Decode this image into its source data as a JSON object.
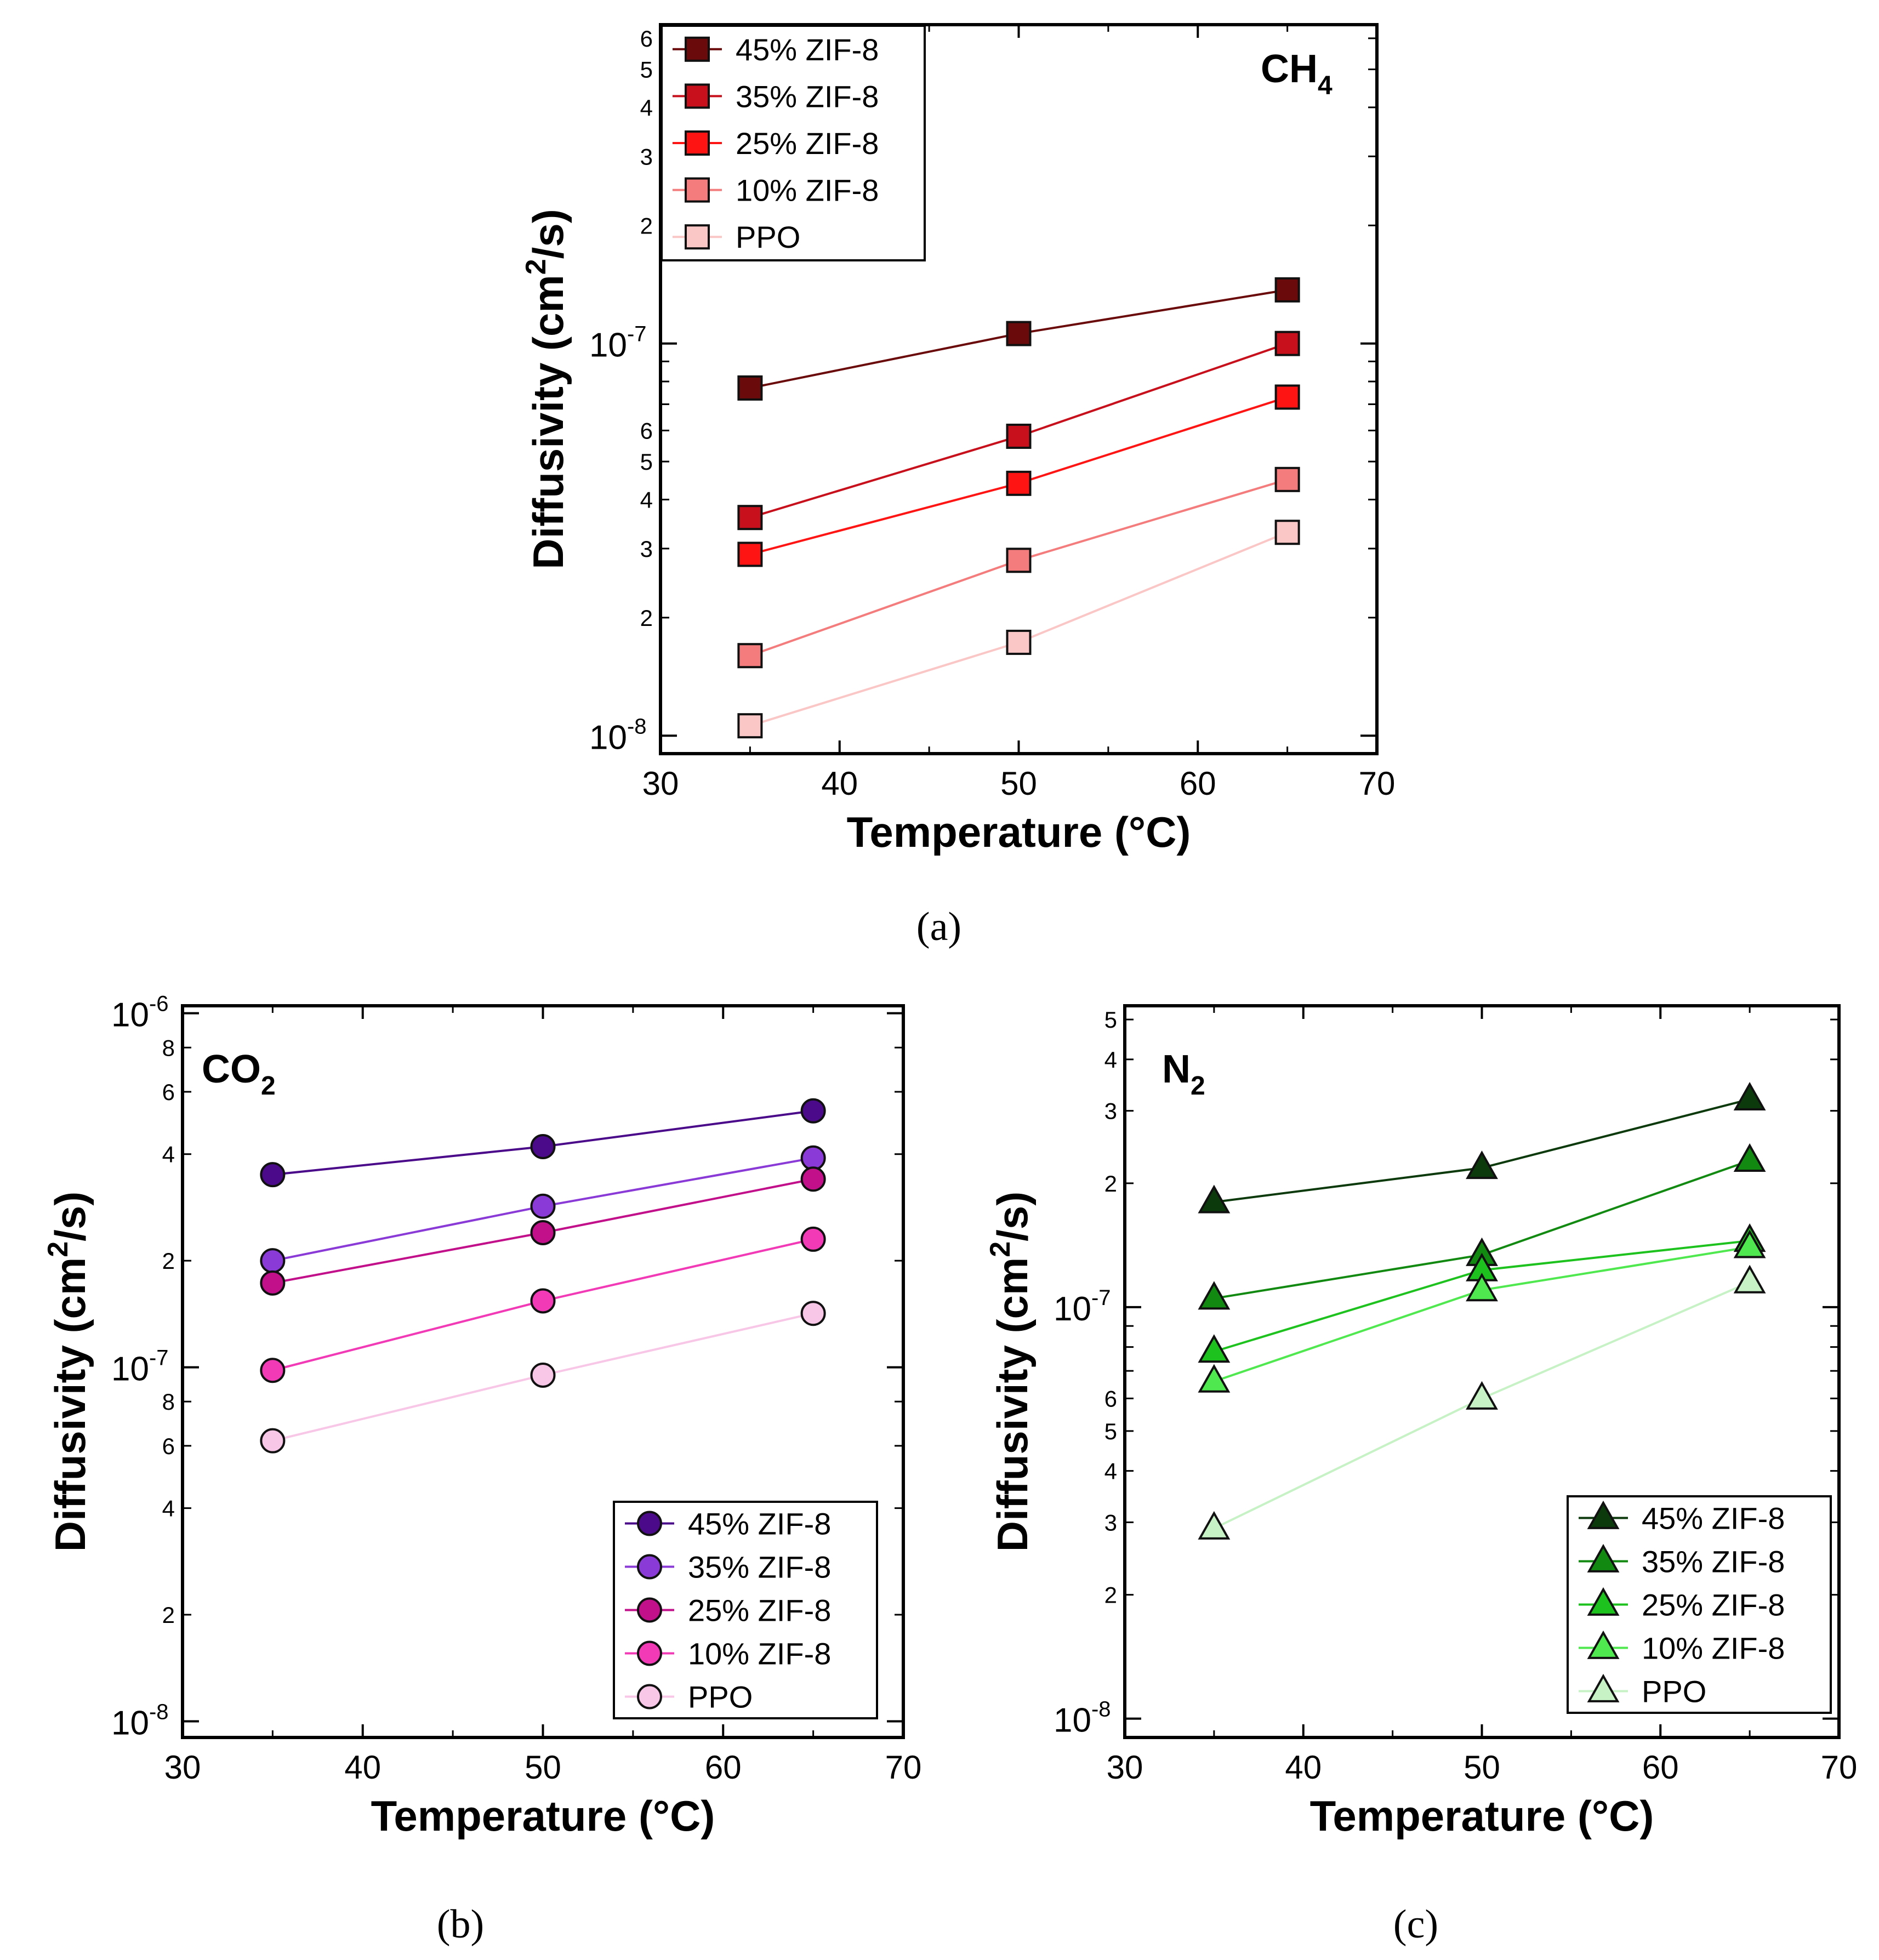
{
  "chart_data": [
    {
      "type": "line",
      "panel_label": "(a)",
      "gas_label": "CH",
      "gas_subscript": "4",
      "xlabel": "Temperature (°C)",
      "ylabel": "Diffusivity (cm",
      "ylabel_sup": "2",
      "ylabel_tail": "/s)",
      "xlim": [
        30,
        70
      ],
      "ylim": [
        9e-09,
        6.5e-07
      ],
      "yscale": "log",
      "xticks": [
        30,
        40,
        50,
        60,
        70
      ],
      "y_major": [
        {
          "value": 1e-08,
          "base": "10",
          "exp": "-8"
        },
        {
          "value": 1e-07,
          "base": "10",
          "exp": "-7"
        }
      ],
      "y_minor": [
        {
          "value": 2e-08,
          "label": "2"
        },
        {
          "value": 3e-08,
          "label": "3"
        },
        {
          "value": 4e-08,
          "label": "4"
        },
        {
          "value": 5e-08,
          "label": "5"
        },
        {
          "value": 6e-08,
          "label": "6"
        },
        {
          "value": 2e-07,
          "label": "2"
        },
        {
          "value": 3e-07,
          "label": "3"
        },
        {
          "value": 4e-07,
          "label": "4"
        },
        {
          "value": 5e-07,
          "label": "5"
        },
        {
          "value": 6e-07,
          "label": "6"
        }
      ],
      "y_minor_unlabeled": [
        7e-08,
        8e-08,
        9e-08
      ],
      "marker": "square",
      "legend_position": "top-left",
      "x": [
        35,
        50,
        65
      ],
      "series": [
        {
          "name": "45% ZIF-8",
          "color": "#6b0a0a",
          "values": [
            7.7e-08,
            1.06e-07,
            1.37e-07
          ]
        },
        {
          "name": "35% ZIF-8",
          "color": "#c8101c",
          "values": [
            3.6e-08,
            5.8e-08,
            1e-07
          ]
        },
        {
          "name": "25% ZIF-8",
          "color": "#ff1414",
          "values": [
            2.9e-08,
            4.4e-08,
            7.3e-08
          ]
        },
        {
          "name": "10% ZIF-8",
          "color": "#f47c7c",
          "values": [
            1.6e-08,
            2.8e-08,
            4.5e-08
          ]
        },
        {
          "name": "PPO",
          "color": "#fbc6c6",
          "values": [
            1.06e-08,
            1.73e-08,
            3.3e-08
          ]
        }
      ]
    },
    {
      "type": "line",
      "panel_label": "(b)",
      "gas_label": "CO",
      "gas_subscript": "2",
      "xlabel": "Temperature (°C)",
      "ylabel": "Diffusivity (cm",
      "ylabel_sup": "2",
      "ylabel_tail": "/s)",
      "xlim": [
        30,
        70
      ],
      "ylim": [
        9e-09,
        1.05e-06
      ],
      "yscale": "log",
      "xticks": [
        30,
        40,
        50,
        60,
        70
      ],
      "y_major": [
        {
          "value": 1e-08,
          "base": "10",
          "exp": "-8"
        },
        {
          "value": 1e-07,
          "base": "10",
          "exp": "-7"
        },
        {
          "value": 1e-06,
          "base": "10",
          "exp": "-6"
        }
      ],
      "y_minor": [
        {
          "value": 2e-08,
          "label": "2"
        },
        {
          "value": 4e-08,
          "label": "4"
        },
        {
          "value": 6e-08,
          "label": "6"
        },
        {
          "value": 8e-08,
          "label": "8"
        },
        {
          "value": 2e-07,
          "label": "2"
        },
        {
          "value": 4e-07,
          "label": "4"
        },
        {
          "value": 6e-07,
          "label": "6"
        },
        {
          "value": 8e-07,
          "label": "8"
        }
      ],
      "y_minor_unlabeled": [],
      "marker": "circle",
      "legend_position": "bottom-right",
      "x": [
        35,
        50,
        65
      ],
      "series": [
        {
          "name": "45% ZIF-8",
          "color": "#4a0a8a",
          "values": [
            3.5e-07,
            4.2e-07,
            5.3e-07
          ]
        },
        {
          "name": "35% ZIF-8",
          "color": "#8a3ad6",
          "values": [
            2e-07,
            2.85e-07,
            3.9e-07
          ]
        },
        {
          "name": "25% ZIF-8",
          "color": "#c20f8a",
          "values": [
            1.73e-07,
            2.4e-07,
            3.4e-07
          ]
        },
        {
          "name": "10% ZIF-8",
          "color": "#f23ab6",
          "values": [
            9.8e-08,
            1.54e-07,
            2.3e-07
          ]
        },
        {
          "name": "PPO",
          "color": "#f8c6e6",
          "values": [
            6.2e-08,
            9.5e-08,
            1.42e-07
          ]
        }
      ]
    },
    {
      "type": "line",
      "panel_label": "(c)",
      "gas_label": "N",
      "gas_subscript": "2",
      "xlabel": "Temperature (°C)",
      "ylabel": "Diffusivity (cm",
      "ylabel_sup": "2",
      "ylabel_tail": "/s)",
      "xlim": [
        30,
        70
      ],
      "ylim": [
        9e-09,
        5.4e-07
      ],
      "yscale": "log",
      "xticks": [
        30,
        40,
        50,
        60,
        70
      ],
      "y_major": [
        {
          "value": 1e-08,
          "base": "10",
          "exp": "-8"
        },
        {
          "value": 1e-07,
          "base": "10",
          "exp": "-7"
        }
      ],
      "y_minor": [
        {
          "value": 2e-08,
          "label": "2"
        },
        {
          "value": 3e-08,
          "label": "3"
        },
        {
          "value": 4e-08,
          "label": "4"
        },
        {
          "value": 5e-08,
          "label": "5"
        },
        {
          "value": 6e-08,
          "label": "6"
        },
        {
          "value": 2e-07,
          "label": "2"
        },
        {
          "value": 3e-07,
          "label": "3"
        },
        {
          "value": 4e-07,
          "label": "4"
        },
        {
          "value": 5e-07,
          "label": "5"
        }
      ],
      "y_minor_unlabeled": [
        7e-08,
        8e-08,
        9e-08
      ],
      "marker": "triangle",
      "legend_position": "bottom-right",
      "x": [
        35,
        50,
        65
      ],
      "series": [
        {
          "name": "45% ZIF-8",
          "color": "#0c3a0c",
          "values": [
            1.8e-07,
            2.18e-07,
            3.2e-07
          ]
        },
        {
          "name": "35% ZIF-8",
          "color": "#128a12",
          "values": [
            1.05e-07,
            1.34e-07,
            2.27e-07
          ]
        },
        {
          "name": "25% ZIF-8",
          "color": "#1ec21e",
          "values": [
            7.8e-08,
            1.23e-07,
            1.45e-07
          ]
        },
        {
          "name": "10% ZIF-8",
          "color": "#4fe84f",
          "values": [
            6.6e-08,
            1.1e-07,
            1.4e-07
          ]
        },
        {
          "name": "PPO",
          "color": "#c6f2c6",
          "values": [
            2.9e-08,
            6e-08,
            1.15e-07
          ]
        }
      ]
    }
  ]
}
